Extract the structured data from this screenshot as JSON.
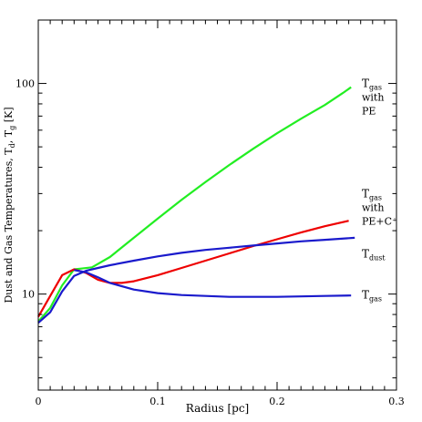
{
  "chart_data": {
    "type": "line",
    "xlabel": "Radius [pc]",
    "ylabel": "Dust and Gas Temperatures, T",
    "ylabel_sub_d": "d",
    "ylabel_sep": ", T",
    "ylabel_sub_g": "g",
    "ylabel_unit": " [K]",
    "xlim": [
      0,
      0.3
    ],
    "ylim": [
      3.5,
      200
    ],
    "yscale": "log",
    "x_ticks": [
      0,
      0.1,
      0.2,
      0.3
    ],
    "x_tick_labels": [
      "0",
      "0.1",
      "0.2",
      "0.3"
    ],
    "y_ticks": [
      10,
      100
    ],
    "y_tick_labels": [
      "10",
      "100"
    ],
    "grid": false,
    "colors": {
      "green": "#22ee22",
      "red": "#ee0000",
      "blue": "#1a1acc"
    },
    "series": [
      {
        "color": "green",
        "x": [
          0,
          0.01,
          0.02,
          0.03,
          0.035,
          0.045,
          0.06,
          0.08,
          0.1,
          0.12,
          0.14,
          0.16,
          0.18,
          0.2,
          0.22,
          0.24,
          0.255,
          0.262
        ],
        "y": [
          7.4,
          8.6,
          11.0,
          13.1,
          13.2,
          13.4,
          15.0,
          18.5,
          22.8,
          28.0,
          34.0,
          41.0,
          49.0,
          58.0,
          68.0,
          79.0,
          90.0,
          96.0
        ]
      },
      {
        "color": "red",
        "x": [
          0,
          0.01,
          0.02,
          0.03,
          0.04,
          0.05,
          0.06,
          0.07,
          0.08,
          0.1,
          0.12,
          0.14,
          0.16,
          0.18,
          0.2,
          0.22,
          0.24,
          0.26
        ],
        "y": [
          7.8,
          9.8,
          12.3,
          13.1,
          12.6,
          11.7,
          11.3,
          11.3,
          11.5,
          12.3,
          13.3,
          14.4,
          15.6,
          16.9,
          18.2,
          19.6,
          21.0,
          22.3
        ]
      },
      {
        "color": "blue",
        "name": "T_dust",
        "x": [
          0,
          0.01,
          0.02,
          0.03,
          0.04,
          0.05,
          0.06,
          0.08,
          0.1,
          0.12,
          0.14,
          0.16,
          0.18,
          0.2,
          0.22,
          0.24,
          0.265
        ],
        "y": [
          7.3,
          8.2,
          10.3,
          12.2,
          12.9,
          13.3,
          13.7,
          14.4,
          15.1,
          15.7,
          16.2,
          16.6,
          17.0,
          17.4,
          17.8,
          18.1,
          18.5
        ]
      },
      {
        "color": "blue",
        "name": "T_gas",
        "x": [
          0.03,
          0.04,
          0.05,
          0.06,
          0.08,
          0.1,
          0.12,
          0.14,
          0.16,
          0.18,
          0.2,
          0.22,
          0.24,
          0.262
        ],
        "y": [
          13.0,
          12.7,
          12.0,
          11.3,
          10.5,
          10.1,
          9.9,
          9.8,
          9.7,
          9.7,
          9.7,
          9.75,
          9.8,
          9.85
        ]
      }
    ],
    "annotations": [
      {
        "main": "T",
        "sub": "gas",
        "lines": [
          "with",
          "PE"
        ],
        "y": 100
      },
      {
        "main": "T",
        "sub": "gas",
        "lines": [
          "with",
          "PE+C⁺"
        ],
        "y": 30
      },
      {
        "main": "T",
        "sub": "dust",
        "lines": [],
        "y": 15.5
      },
      {
        "main": "T",
        "sub": "gas",
        "lines": [],
        "y": 9.9
      }
    ]
  }
}
